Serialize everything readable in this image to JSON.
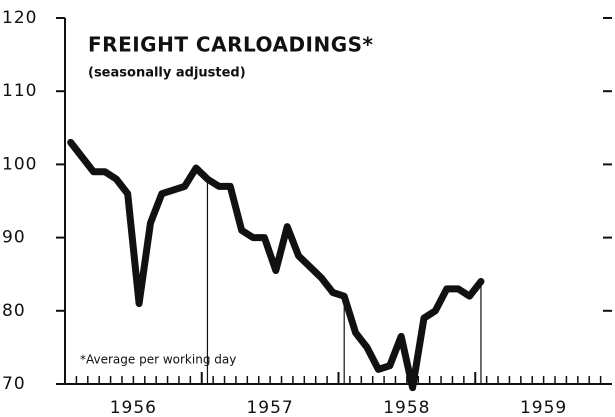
{
  "chart_data": {
    "type": "line",
    "title": "FREIGHT CARLOADINGS*",
    "subtitle": "(seasonally adjusted)",
    "annotation": "*Average per working day",
    "values": [
      103,
      101,
      99,
      99,
      98,
      96,
      81,
      92,
      96,
      96.5,
      97,
      99.5,
      98,
      97,
      97,
      91,
      90,
      90,
      85.5,
      91.5,
      87.5,
      86,
      84.5,
      82.5,
      82,
      77,
      75,
      72,
      72.5,
      76.5,
      69.5,
      79,
      80,
      83,
      83,
      82,
      84
    ],
    "color": "#111111",
    "ylim": [
      70,
      120
    ],
    "yticks": [
      70,
      80,
      90,
      100,
      110,
      120
    ],
    "xlim": [
      1956,
      1960
    ],
    "xticks": [
      1956,
      1957,
      1958,
      1959
    ]
  }
}
